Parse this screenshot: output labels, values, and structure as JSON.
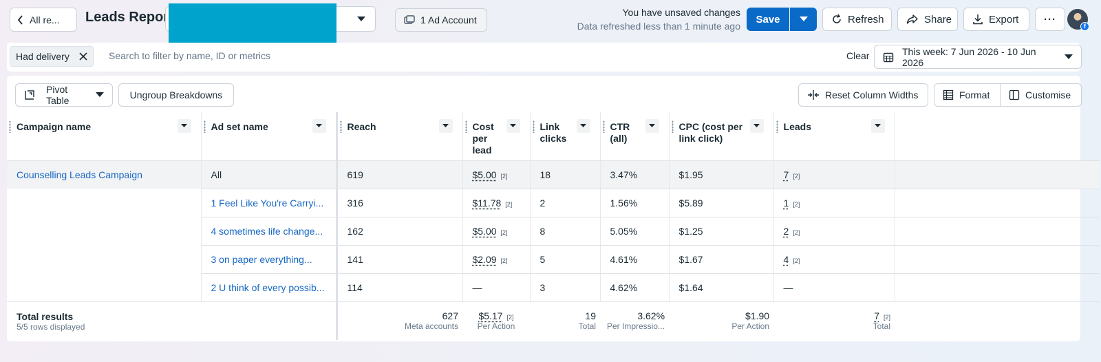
{
  "header": {
    "back_label": "All re...",
    "title": "Leads Repor",
    "ad_account_label": "1 Ad Account",
    "unsaved_status": "You have unsaved changes",
    "refreshed_status": "Data refreshed less than 1 minute ago",
    "save_label": "Save",
    "refresh_label": "Refresh",
    "share_label": "Share",
    "export_label": "Export",
    "more_label": "···"
  },
  "filters": {
    "chip_label": "Had delivery",
    "search_placeholder": "Search to filter by name, ID or metrics",
    "clear_label": "Clear",
    "date_range_label": "This week: 7 Jun 2026 - 10 Jun 2026"
  },
  "toolbar": {
    "pivot_label": "Pivot Table",
    "ungroup_label": "Ungroup Breakdowns",
    "reset_widths_label": "Reset Column Widths",
    "format_label": "Format",
    "customise_label": "Customise"
  },
  "table": {
    "columns": [
      "Campaign name",
      "Ad set name",
      "Reach",
      "Cost per lead",
      "Link clicks",
      "CTR (all)",
      "CPC (cost per link click)",
      "Leads"
    ],
    "campaign": "Counselling Leads Campaign",
    "rows": [
      {
        "adset": "All",
        "reach": "619",
        "cpl": "$5.00",
        "cpl_tag": "[2]",
        "clicks": "18",
        "ctr": "3.47%",
        "cpc": "$1.95",
        "leads": "7",
        "leads_tag": "[2]"
      },
      {
        "adset": "1 Feel Like You're Carryi...",
        "reach": "316",
        "cpl": "$11.78",
        "cpl_tag": "[2]",
        "clicks": "2",
        "ctr": "1.56%",
        "cpc": "$5.89",
        "leads": "1",
        "leads_tag": "[2]"
      },
      {
        "adset": "4 sometimes life change...",
        "reach": "162",
        "cpl": "$5.00",
        "cpl_tag": "[2]",
        "clicks": "8",
        "ctr": "5.05%",
        "cpc": "$1.25",
        "leads": "2",
        "leads_tag": "[2]"
      },
      {
        "adset": "3 on paper everything...",
        "reach": "141",
        "cpl": "$2.09",
        "cpl_tag": "[2]",
        "clicks": "5",
        "ctr": "4.61%",
        "cpc": "$1.67",
        "leads": "4",
        "leads_tag": "[2]"
      },
      {
        "adset": "2 U think of every possib...",
        "reach": "114",
        "cpl": "—",
        "cpl_tag": "",
        "clicks": "3",
        "ctr": "4.62%",
        "cpc": "$1.64",
        "leads": "—",
        "leads_tag": ""
      }
    ],
    "totals": {
      "label": "Total results",
      "rows_displayed": "5/5 rows displayed",
      "reach": "627",
      "reach_caption": "Meta accounts",
      "cpl": "$5.17",
      "cpl_tag": "[2]",
      "cpl_caption": "Per Action",
      "clicks": "19",
      "clicks_caption": "Total",
      "ctr": "3.62%",
      "ctr_caption": "Per Impressio...",
      "cpc": "$1.90",
      "cpc_caption": "Per Action",
      "leads": "7",
      "leads_tag": "[2]",
      "leads_caption": "Total"
    }
  },
  "colors": {
    "primary": "#0a6ac8",
    "link": "#1768c4",
    "redaction": "#00a3cc"
  }
}
